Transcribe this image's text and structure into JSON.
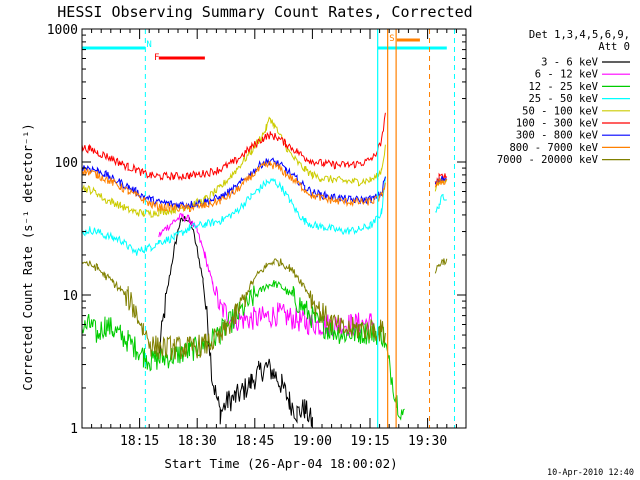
{
  "chart_data": {
    "type": "line",
    "title": "HESSI Observing Summary Count Rates, Corrected",
    "xlabel": "Start Time (26-Apr-04 18:00:02)",
    "ylabel": "Corrected Count Rate (s⁻¹ detector⁻¹)",
    "yscale": "log",
    "ylim": [
      1,
      1000
    ],
    "xlim_minutes": [
      0,
      100
    ],
    "x_ticks": [
      {
        "label": "18:15",
        "t": 15
      },
      {
        "label": "18:30",
        "t": 30
      },
      {
        "label": "18:45",
        "t": 45
      },
      {
        "label": "19:00",
        "t": 60
      },
      {
        "label": "19:15",
        "t": 75
      },
      {
        "label": "19:30",
        "t": 90
      }
    ],
    "y_ticks": [
      {
        "label": "1",
        "v": 1
      },
      {
        "label": "10",
        "v": 10
      },
      {
        "label": "100",
        "v": 100
      },
      {
        "label": "1000",
        "v": 1000
      }
    ],
    "grid": false,
    "legend_position": "right",
    "legend_header": [
      "Det 1,3,4,5,6,9,",
      "Att 0"
    ],
    "footer_date": "10-Apr-2010 12:40",
    "series": [
      {
        "name": "3 - 6 keV",
        "color": "#000000",
        "points": [
          [
            20,
            3.5
          ],
          [
            22,
            10
          ],
          [
            24,
            22
          ],
          [
            25.5,
            35
          ],
          [
            27,
            38
          ],
          [
            28.5,
            34
          ],
          [
            30,
            22
          ],
          [
            31.5,
            13
          ],
          [
            33,
            5
          ],
          [
            34,
            2.3
          ],
          [
            36,
            1.3
          ],
          [
            38,
            1.6
          ],
          [
            40,
            1.7
          ],
          [
            42,
            1.9
          ],
          [
            44,
            2.2
          ],
          [
            46,
            2.6
          ],
          [
            48,
            2.9
          ],
          [
            50,
            2.6
          ],
          [
            52,
            2.1
          ],
          [
            54,
            1.6
          ],
          [
            56,
            1.3
          ],
          [
            58,
            1.4
          ],
          [
            60,
            1.1
          ]
        ]
      },
      {
        "name": "6 - 12 keV",
        "color": "#ff00ff",
        "points": [
          [
            20,
            28
          ],
          [
            22,
            32
          ],
          [
            24,
            36
          ],
          [
            26,
            39
          ],
          [
            28,
            37
          ],
          [
            30,
            30
          ],
          [
            32,
            20
          ],
          [
            34,
            12
          ],
          [
            36,
            8
          ],
          [
            40,
            6.5
          ],
          [
            44,
            6.6
          ],
          [
            48,
            6.8
          ],
          [
            51,
            7.2
          ],
          [
            54,
            6.8
          ],
          [
            58,
            6.2
          ],
          [
            62,
            6.0
          ],
          [
            66,
            6.0
          ],
          [
            70,
            6.0
          ],
          [
            75,
            6.2
          ],
          [
            76,
            6.3
          ]
        ]
      },
      {
        "name": "12 - 25 keV",
        "color": "#00cc00",
        "points": [
          [
            0,
            5.5
          ],
          [
            2,
            6
          ],
          [
            4,
            5
          ],
          [
            6,
            6
          ],
          [
            8,
            5.5
          ],
          [
            10,
            5
          ],
          [
            12,
            4.5
          ],
          [
            14,
            4
          ],
          [
            16,
            3.5
          ],
          [
            18,
            3.2
          ],
          [
            20,
            3.3
          ],
          [
            24,
            3.5
          ],
          [
            28,
            3.8
          ],
          [
            32,
            4.2
          ],
          [
            36,
            5.2
          ],
          [
            40,
            6.8
          ],
          [
            44,
            9.2
          ],
          [
            48,
            11.8
          ],
          [
            50,
            12.2
          ],
          [
            52,
            11.5
          ],
          [
            55,
            9.6
          ],
          [
            58,
            7.8
          ],
          [
            61,
            6.3
          ],
          [
            64,
            5.6
          ],
          [
            68,
            5.1
          ],
          [
            72,
            5.2
          ],
          [
            76,
            5.2
          ],
          [
            78.5,
            5.0
          ],
          [
            80,
            3.0
          ],
          [
            82,
            1.6
          ],
          [
            84,
            1.2
          ]
        ]
      },
      {
        "name": "25 - 50 keV",
        "color": "#00ffff",
        "points": [
          [
            0,
            29
          ],
          [
            2,
            31
          ],
          [
            4,
            30
          ],
          [
            6,
            28
          ],
          [
            8,
            27
          ],
          [
            10,
            26
          ],
          [
            12,
            23
          ],
          [
            14,
            21
          ],
          [
            16,
            22
          ],
          [
            18,
            23
          ],
          [
            20,
            25
          ],
          [
            24,
            27
          ],
          [
            28,
            32
          ],
          [
            32,
            34
          ],
          [
            36,
            36
          ],
          [
            40,
            42
          ],
          [
            44,
            55
          ],
          [
            46,
            62
          ],
          [
            48,
            70
          ],
          [
            50,
            72
          ],
          [
            52,
            64
          ],
          [
            54,
            52
          ],
          [
            56,
            42
          ],
          [
            58,
            36
          ],
          [
            61,
            33
          ],
          [
            64,
            32
          ],
          [
            68,
            30
          ],
          [
            72,
            31
          ],
          [
            75,
            33
          ],
          [
            76,
            35
          ],
          [
            78,
            42
          ],
          [
            79,
            80
          ],
          [
            92,
            40
          ],
          [
            93,
            48
          ],
          [
            94,
            55
          ],
          [
            95,
            55
          ]
        ]
      },
      {
        "name": "50 - 100 keV",
        "color": "#cccc00",
        "points": [
          [
            0,
            64
          ],
          [
            2,
            62
          ],
          [
            4,
            58
          ],
          [
            6,
            52
          ],
          [
            8,
            50
          ],
          [
            10,
            47
          ],
          [
            12,
            44
          ],
          [
            14,
            42
          ],
          [
            16,
            41
          ],
          [
            18,
            41
          ],
          [
            20,
            42
          ],
          [
            24,
            44
          ],
          [
            28,
            47
          ],
          [
            32,
            52
          ],
          [
            36,
            64
          ],
          [
            40,
            86
          ],
          [
            44,
            120
          ],
          [
            47,
            160
          ],
          [
            48,
            180
          ],
          [
            49,
            215
          ],
          [
            50,
            190
          ],
          [
            52,
            150
          ],
          [
            54,
            118
          ],
          [
            56,
            100
          ],
          [
            58,
            88
          ],
          [
            60,
            80
          ],
          [
            62,
            76
          ],
          [
            65,
            74
          ],
          [
            68,
            72
          ],
          [
            72,
            71
          ],
          [
            75,
            73
          ],
          [
            77,
            78
          ],
          [
            78,
            88
          ],
          [
            79,
            130
          ],
          [
            92,
            62
          ],
          [
            93,
            70
          ],
          [
            94,
            74
          ],
          [
            95,
            75
          ]
        ]
      },
      {
        "name": "100 - 300 keV",
        "color": "#ff0000",
        "points": [
          [
            0,
            128
          ],
          [
            2,
            125
          ],
          [
            4,
            118
          ],
          [
            6,
            112
          ],
          [
            8,
            105
          ],
          [
            10,
            98
          ],
          [
            12,
            92
          ],
          [
            14,
            88
          ],
          [
            16,
            82
          ],
          [
            18,
            79
          ],
          [
            20,
            78
          ],
          [
            24,
            78
          ],
          [
            28,
            79
          ],
          [
            32,
            82
          ],
          [
            36,
            88
          ],
          [
            40,
            102
          ],
          [
            44,
            128
          ],
          [
            47,
            150
          ],
          [
            49,
            160
          ],
          [
            51,
            152
          ],
          [
            53,
            138
          ],
          [
            56,
            120
          ],
          [
            58,
            108
          ],
          [
            60,
            102
          ],
          [
            63,
            97
          ],
          [
            66,
            95
          ],
          [
            70,
            95
          ],
          [
            74,
            100
          ],
          [
            76,
            110
          ],
          [
            78,
            140
          ],
          [
            79,
            240
          ],
          [
            92,
            68
          ],
          [
            93,
            76
          ],
          [
            94,
            78
          ],
          [
            95,
            78
          ]
        ]
      },
      {
        "name": "300 - 800 keV",
        "color": "#0000ff",
        "points": [
          [
            0,
            92
          ],
          [
            2,
            90
          ],
          [
            4,
            86
          ],
          [
            6,
            81
          ],
          [
            8,
            75
          ],
          [
            10,
            70
          ],
          [
            12,
            65
          ],
          [
            14,
            60
          ],
          [
            16,
            55
          ],
          [
            18,
            52
          ],
          [
            20,
            50
          ],
          [
            24,
            48
          ],
          [
            28,
            48
          ],
          [
            32,
            50
          ],
          [
            36,
            54
          ],
          [
            40,
            64
          ],
          [
            44,
            82
          ],
          [
            47,
            98
          ],
          [
            49,
            102
          ],
          [
            51,
            98
          ],
          [
            53,
            88
          ],
          [
            56,
            74
          ],
          [
            58,
            65
          ],
          [
            60,
            59
          ],
          [
            63,
            56
          ],
          [
            66,
            54
          ],
          [
            70,
            52
          ],
          [
            74,
            52
          ],
          [
            76,
            53
          ],
          [
            78,
            58
          ],
          [
            79,
            78
          ],
          [
            92,
            68
          ],
          [
            93,
            72
          ],
          [
            94,
            75
          ],
          [
            95,
            75
          ]
        ]
      },
      {
        "name": "800 - 7000 keV",
        "color": "#ff8000",
        "points": [
          [
            0,
            86
          ],
          [
            2,
            84
          ],
          [
            4,
            80
          ],
          [
            6,
            75
          ],
          [
            8,
            70
          ],
          [
            10,
            65
          ],
          [
            12,
            60
          ],
          [
            14,
            56
          ],
          [
            16,
            52
          ],
          [
            18,
            48
          ],
          [
            20,
            46
          ],
          [
            24,
            45
          ],
          [
            28,
            45
          ],
          [
            32,
            47
          ],
          [
            36,
            51
          ],
          [
            40,
            60
          ],
          [
            44,
            78
          ],
          [
            47,
            92
          ],
          [
            49,
            96
          ],
          [
            51,
            92
          ],
          [
            53,
            82
          ],
          [
            56,
            70
          ],
          [
            58,
            62
          ],
          [
            60,
            56
          ],
          [
            63,
            53
          ],
          [
            66,
            51
          ],
          [
            70,
            50
          ],
          [
            74,
            50
          ],
          [
            76,
            51
          ],
          [
            78,
            55
          ],
          [
            79,
            70
          ],
          [
            92,
            66
          ],
          [
            93,
            70
          ],
          [
            94,
            72
          ],
          [
            95,
            72
          ]
        ]
      },
      {
        "name": "7000 - 20000 keV",
        "color": "#808000",
        "points": [
          [
            0,
            18
          ],
          [
            2,
            17
          ],
          [
            4,
            16
          ],
          [
            6,
            14
          ],
          [
            8,
            12.5
          ],
          [
            10,
            11
          ],
          [
            12,
            9.5
          ],
          [
            14,
            7.5
          ],
          [
            16,
            5.5
          ],
          [
            18,
            4.2
          ],
          [
            20,
            4.0
          ],
          [
            24,
            4.0
          ],
          [
            28,
            4.0
          ],
          [
            32,
            4.2
          ],
          [
            36,
            4.8
          ],
          [
            40,
            7.0
          ],
          [
            44,
            12
          ],
          [
            46,
            14.5
          ],
          [
            48,
            16.5
          ],
          [
            50,
            18
          ],
          [
            52,
            17.5
          ],
          [
            54,
            16
          ],
          [
            56,
            14
          ],
          [
            58,
            11.5
          ],
          [
            60,
            9.2
          ],
          [
            62,
            7.5
          ],
          [
            65,
            6.2
          ],
          [
            68,
            5.5
          ],
          [
            72,
            5.6
          ],
          [
            76,
            5.5
          ],
          [
            78.5,
            5.3
          ],
          [
            79,
            4.8
          ],
          [
            92,
            15
          ],
          [
            93,
            17
          ],
          [
            94,
            18
          ],
          [
            95,
            18
          ]
        ]
      }
    ],
    "markers": [
      {
        "label": "N",
        "t": 16.5,
        "color": "#00ffff",
        "style": "dashed"
      },
      {
        "label": "F",
        "t": 18.5,
        "color": "#ff0000",
        "style": "text"
      },
      {
        "label": "S",
        "t": 79.5,
        "color": "#ff8000",
        "style": "text"
      }
    ],
    "night_bars_cyan": [
      [
        0,
        16.5
      ],
      [
        77,
        95
      ]
    ],
    "flare_bar_red": [
      20,
      32
    ],
    "saa_bar_orange": [
      82,
      88
    ]
  }
}
